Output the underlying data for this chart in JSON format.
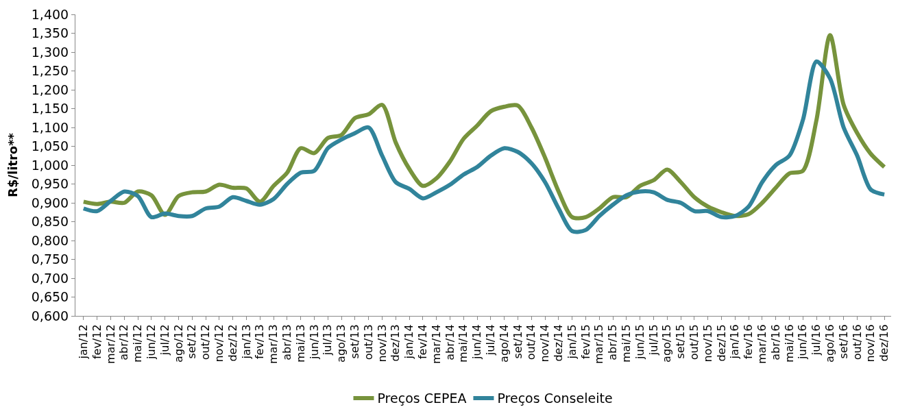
{
  "chart_data": {
    "type": "line",
    "ylabel": "R$/litro**",
    "categories": [
      "jan/12",
      "fev/12",
      "mar/12",
      "abr/12",
      "mai/12",
      "jun/12",
      "jul/12",
      "ago/12",
      "set/12",
      "out/12",
      "nov/12",
      "dez/12",
      "jan/13",
      "fev/13",
      "mar/13",
      "abr/13",
      "mai/13",
      "jun/13",
      "jul/13",
      "ago/13",
      "set/13",
      "out/13",
      "nov/13",
      "dez/13",
      "jan/14",
      "fev/14",
      "mar/14",
      "abr/14",
      "mai/14",
      "jun/14",
      "jul/14",
      "ago/14",
      "set/14",
      "out/14",
      "nov/14",
      "dez/14",
      "jan/15",
      "fev/15",
      "mar/15",
      "abr/15",
      "mai/15",
      "jun/15",
      "jul/15",
      "ago/15",
      "set/15",
      "out/15",
      "nov/15",
      "dez/15",
      "jan/16",
      "fev/16",
      "mar/16",
      "abr/16",
      "mai/16",
      "jun/16",
      "jul/16",
      "ago/16",
      "set/16",
      "out/16",
      "nov/16",
      "dez/16"
    ],
    "series": [
      {
        "name": "Preços CEPEA",
        "color": "#77933c",
        "values": [
          0.903,
          0.897,
          0.903,
          0.9,
          0.93,
          0.92,
          0.868,
          0.918,
          0.928,
          0.93,
          0.948,
          0.94,
          0.938,
          0.903,
          0.945,
          0.98,
          1.045,
          1.032,
          1.072,
          1.08,
          1.125,
          1.135,
          1.16,
          1.06,
          0.99,
          0.945,
          0.965,
          1.01,
          1.07,
          1.105,
          1.143,
          1.155,
          1.158,
          1.1,
          1.02,
          0.93,
          0.862,
          0.862,
          0.885,
          0.915,
          0.915,
          0.945,
          0.96,
          0.988,
          0.955,
          0.915,
          0.89,
          0.875,
          0.865,
          0.87,
          0.9,
          0.94,
          0.978,
          0.985,
          1.12,
          1.345,
          1.16,
          1.085,
          1.03,
          0.995
        ]
      },
      {
        "name": "Preços Conseleite",
        "color": "#31849b",
        "values": [
          0.885,
          0.878,
          0.905,
          0.93,
          0.918,
          0.862,
          0.872,
          0.865,
          0.865,
          0.885,
          0.89,
          0.915,
          0.905,
          0.895,
          0.91,
          0.95,
          0.98,
          0.985,
          1.045,
          1.068,
          1.085,
          1.1,
          1.025,
          0.955,
          0.937,
          0.912,
          0.928,
          0.948,
          0.975,
          0.995,
          1.025,
          1.045,
          1.035,
          1.005,
          0.955,
          0.885,
          0.825,
          0.828,
          0.865,
          0.895,
          0.92,
          0.93,
          0.928,
          0.908,
          0.9,
          0.878,
          0.878,
          0.862,
          0.865,
          0.89,
          0.955,
          1.0,
          1.025,
          1.12,
          1.275,
          1.23,
          1.1,
          1.025,
          0.935,
          0.922
        ]
      }
    ],
    "ylim": [
      0.6,
      1.4
    ],
    "yticks": [
      {
        "value": 0.6,
        "label": "0,600"
      },
      {
        "value": 0.65,
        "label": "0,650"
      },
      {
        "value": 0.7,
        "label": "0,700"
      },
      {
        "value": 0.75,
        "label": "0,750"
      },
      {
        "value": 0.8,
        "label": "0,800"
      },
      {
        "value": 0.85,
        "label": "0,850"
      },
      {
        "value": 0.9,
        "label": "0,900"
      },
      {
        "value": 0.95,
        "label": "0,950"
      },
      {
        "value": 1.0,
        "label": "1,000"
      },
      {
        "value": 1.05,
        "label": "1,050"
      },
      {
        "value": 1.1,
        "label": "1,100"
      },
      {
        "value": 1.15,
        "label": "1,150"
      },
      {
        "value": 1.2,
        "label": "1,200"
      },
      {
        "value": 1.25,
        "label": "1,250"
      },
      {
        "value": 1.3,
        "label": "1,300"
      },
      {
        "value": 1.35,
        "label": "1,350"
      },
      {
        "value": 1.4,
        "label": "1,400"
      }
    ],
    "legend": "bottom",
    "marker": "none",
    "line_style": "solid"
  }
}
